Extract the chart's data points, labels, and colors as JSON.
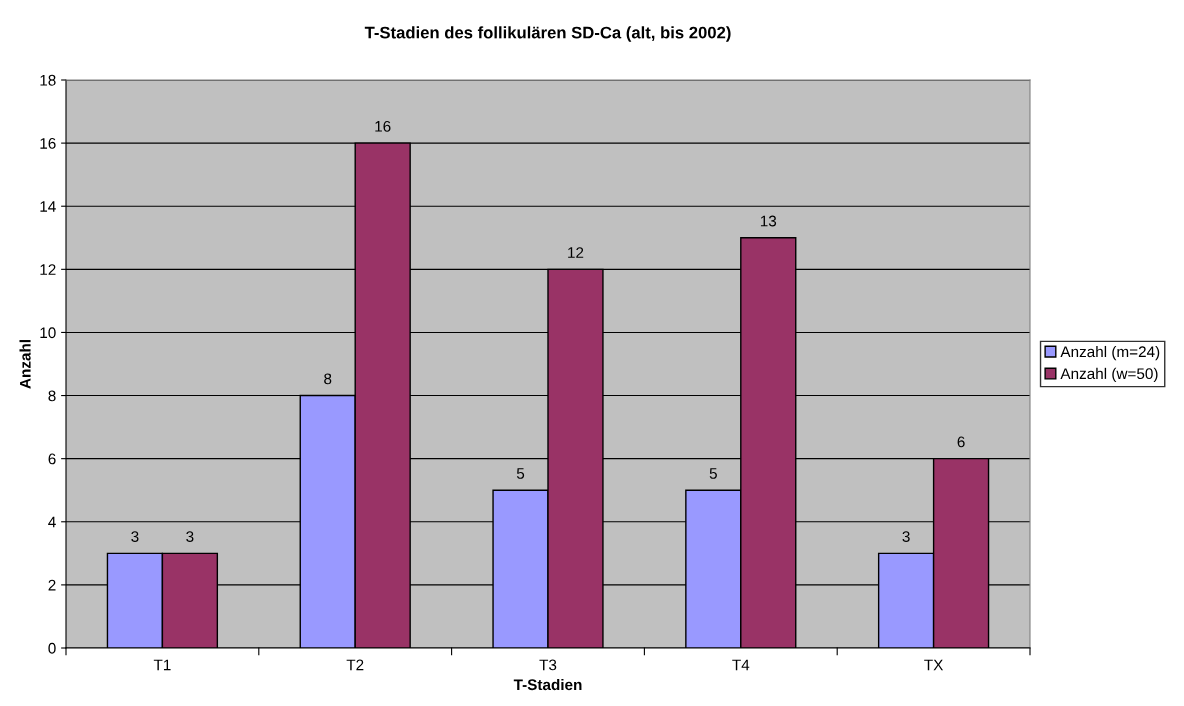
{
  "chart_data": {
    "type": "bar",
    "title": "T-Stadien des follikulären SD-Ca (alt, bis 2002)",
    "xlabel": "T-Stadien",
    "ylabel": "Anzahl",
    "categories": [
      "T1",
      "T2",
      "T3",
      "T4",
      "TX"
    ],
    "series": [
      {
        "name": "Anzahl (m=24)",
        "color": "#9999ff",
        "values": [
          3,
          8,
          5,
          5,
          3
        ]
      },
      {
        "name": "Anzahl (w=50)",
        "color": "#993366",
        "values": [
          3,
          16,
          12,
          13,
          6
        ]
      }
    ],
    "ylim": [
      0,
      18
    ],
    "yticks": [
      0,
      2,
      4,
      6,
      8,
      10,
      12,
      14,
      16,
      18
    ],
    "grid": "y",
    "legend": "right",
    "data_labels": true
  }
}
